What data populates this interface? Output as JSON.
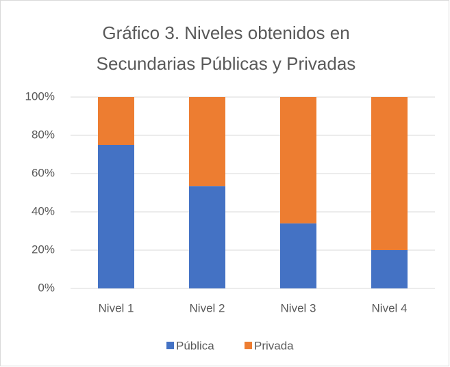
{
  "chart_data": {
    "type": "stacked_bar",
    "title": [
      "Gráfico 3. Niveles obtenidos en",
      "Secundarias Públicas y Privadas"
    ],
    "categories": [
      "Nivel 1",
      "Nivel 2",
      "Nivel 3",
      "Nivel 4"
    ],
    "series": [
      {
        "name": "Pública",
        "color": "#4472c4",
        "values": [
          75,
          53.5,
          34,
          20
        ]
      },
      {
        "name": "Privada",
        "color": "#ed7d31",
        "values": [
          25,
          46.5,
          66,
          80
        ]
      }
    ],
    "ylim": [
      0,
      100
    ],
    "yticks": [
      {
        "value": 0,
        "label": "0%"
      },
      {
        "value": 20,
        "label": "20%"
      },
      {
        "value": 40,
        "label": "40%"
      },
      {
        "value": 60,
        "label": "60%"
      },
      {
        "value": 80,
        "label": "80%"
      },
      {
        "value": 100,
        "label": "100%"
      }
    ],
    "grid": true,
    "legend": "bottom"
  }
}
